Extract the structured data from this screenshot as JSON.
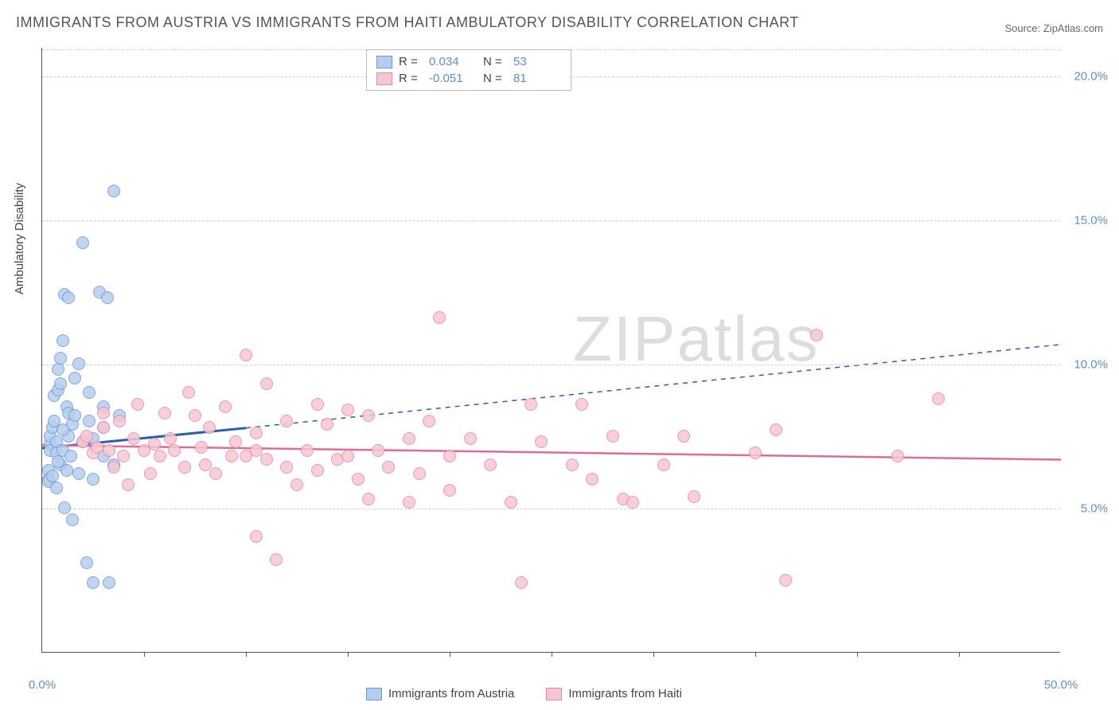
{
  "title": "IMMIGRANTS FROM AUSTRIA VS IMMIGRANTS FROM HAITI AMBULATORY DISABILITY CORRELATION CHART",
  "source_label": "Source: ZipAtlas.com",
  "y_axis_label": "Ambulatory Disability",
  "watermark": {
    "part1": "ZIP",
    "part2": "atlas"
  },
  "chart": {
    "type": "scatter",
    "background_color": "#ffffff",
    "grid_color": "#d0d0d0",
    "axis_color": "#555555",
    "label_color": "#5b8fd6",
    "xlim": [
      0,
      50
    ],
    "ylim": [
      0,
      21
    ],
    "x_ticks": [
      0,
      50
    ],
    "x_tick_labels": [
      "0.0%",
      "50.0%"
    ],
    "x_minor_ticks": [
      5,
      10,
      15,
      20,
      25,
      30,
      35,
      40,
      45
    ],
    "y_ticks": [
      5,
      10,
      15,
      20
    ],
    "y_tick_labels": [
      "5.0%",
      "10.0%",
      "15.0%",
      "20.0%"
    ],
    "marker_radius": 8,
    "marker_border_width": 1.5,
    "marker_fill_opacity": 0.25,
    "series": [
      {
        "name": "Immigrants from Austria",
        "color_fill": "#b7cdee",
        "color_border": "#6a9ad6",
        "trend_color": "#2b5fb0",
        "R": "0.034",
        "N": "53",
        "trend": {
          "x1": 0,
          "y1": 7.1,
          "x2_solid": 10,
          "y2_solid": 7.8,
          "x2": 50,
          "y2": 10.7
        },
        "points": [
          [
            0.3,
            6.3
          ],
          [
            0.3,
            6.0
          ],
          [
            0.3,
            5.9
          ],
          [
            0.4,
            7.2
          ],
          [
            0.4,
            7.0
          ],
          [
            0.4,
            7.5
          ],
          [
            0.5,
            6.1
          ],
          [
            0.5,
            7.8
          ],
          [
            0.6,
            8.0
          ],
          [
            0.6,
            8.9
          ],
          [
            0.7,
            6.9
          ],
          [
            0.7,
            7.3
          ],
          [
            0.8,
            9.1
          ],
          [
            0.8,
            9.8
          ],
          [
            0.9,
            6.5
          ],
          [
            0.9,
            10.2
          ],
          [
            1.0,
            7.0
          ],
          [
            1.0,
            10.8
          ],
          [
            1.1,
            12.4
          ],
          [
            1.1,
            5.0
          ],
          [
            1.2,
            8.5
          ],
          [
            1.3,
            7.5
          ],
          [
            1.3,
            12.3
          ],
          [
            1.4,
            6.8
          ],
          [
            1.5,
            7.9
          ],
          [
            1.5,
            4.6
          ],
          [
            1.6,
            9.5
          ],
          [
            1.8,
            6.2
          ],
          [
            1.8,
            10.0
          ],
          [
            2.0,
            7.3
          ],
          [
            2.0,
            14.2
          ],
          [
            2.2,
            3.1
          ],
          [
            2.3,
            9.0
          ],
          [
            2.5,
            7.4
          ],
          [
            2.5,
            6.0
          ],
          [
            2.5,
            2.4
          ],
          [
            2.8,
            12.5
          ],
          [
            3.0,
            7.8
          ],
          [
            3.2,
            12.3
          ],
          [
            3.3,
            2.4
          ],
          [
            3.5,
            6.5
          ],
          [
            3.5,
            16.0
          ],
          [
            0.8,
            6.6
          ],
          [
            1.2,
            6.3
          ],
          [
            1.0,
            7.7
          ],
          [
            1.3,
            8.3
          ],
          [
            0.7,
            5.7
          ],
          [
            0.9,
            9.3
          ],
          [
            1.6,
            8.2
          ],
          [
            2.3,
            8.0
          ],
          [
            3.0,
            8.5
          ],
          [
            3.0,
            6.8
          ],
          [
            3.8,
            8.2
          ]
        ]
      },
      {
        "name": "Immigrants from Haiti",
        "color_fill": "#f5c7d3",
        "color_border": "#e58aa5",
        "trend_color": "#e06a98",
        "R": "-0.051",
        "N": "81",
        "trend": {
          "x1": 0,
          "y1": 7.2,
          "x2_solid": 50,
          "y2_solid": 6.7,
          "x2": 50,
          "y2": 6.7
        },
        "points": [
          [
            2.0,
            7.3
          ],
          [
            2.2,
            7.5
          ],
          [
            2.5,
            6.9
          ],
          [
            2.7,
            7.1
          ],
          [
            3.0,
            7.8
          ],
          [
            3.0,
            8.3
          ],
          [
            3.3,
            7.0
          ],
          [
            3.5,
            6.4
          ],
          [
            3.8,
            8.0
          ],
          [
            4.0,
            6.8
          ],
          [
            4.2,
            5.8
          ],
          [
            4.5,
            7.4
          ],
          [
            4.7,
            8.6
          ],
          [
            5.0,
            7.0
          ],
          [
            5.3,
            6.2
          ],
          [
            5.5,
            7.2
          ],
          [
            5.8,
            6.8
          ],
          [
            6.0,
            8.3
          ],
          [
            6.3,
            7.4
          ],
          [
            6.5,
            7.0
          ],
          [
            7.0,
            6.4
          ],
          [
            7.2,
            9.0
          ],
          [
            7.5,
            8.2
          ],
          [
            7.8,
            7.1
          ],
          [
            8.0,
            6.5
          ],
          [
            8.2,
            7.8
          ],
          [
            8.5,
            6.2
          ],
          [
            9.0,
            8.5
          ],
          [
            9.3,
            6.8
          ],
          [
            9.5,
            7.3
          ],
          [
            10.0,
            10.3
          ],
          [
            10.0,
            6.8
          ],
          [
            10.5,
            4.0
          ],
          [
            10.5,
            7.0
          ],
          [
            11.0,
            9.3
          ],
          [
            11.0,
            6.7
          ],
          [
            11.5,
            3.2
          ],
          [
            12.0,
            6.4
          ],
          [
            12.0,
            8.0
          ],
          [
            12.5,
            5.8
          ],
          [
            13.0,
            7.0
          ],
          [
            13.5,
            8.6
          ],
          [
            13.5,
            6.3
          ],
          [
            14.0,
            7.9
          ],
          [
            14.5,
            6.7
          ],
          [
            15.0,
            6.8
          ],
          [
            15.0,
            8.4
          ],
          [
            15.5,
            6.0
          ],
          [
            16.0,
            8.2
          ],
          [
            16.0,
            5.3
          ],
          [
            16.5,
            7.0
          ],
          [
            17.0,
            6.4
          ],
          [
            18.0,
            7.4
          ],
          [
            18.0,
            5.2
          ],
          [
            18.5,
            6.2
          ],
          [
            19.0,
            8.0
          ],
          [
            19.5,
            11.6
          ],
          [
            20.0,
            6.8
          ],
          [
            20.0,
            5.6
          ],
          [
            21.0,
            7.4
          ],
          [
            22.0,
            6.5
          ],
          [
            23.0,
            5.2
          ],
          [
            23.5,
            2.4
          ],
          [
            24.0,
            8.6
          ],
          [
            24.5,
            7.3
          ],
          [
            26.0,
            6.5
          ],
          [
            26.5,
            8.6
          ],
          [
            27.0,
            6.0
          ],
          [
            28.0,
            7.5
          ],
          [
            28.5,
            5.3
          ],
          [
            29.0,
            5.2
          ],
          [
            30.5,
            6.5
          ],
          [
            31.5,
            7.5
          ],
          [
            32.0,
            5.4
          ],
          [
            35.0,
            6.9
          ],
          [
            36.0,
            7.7
          ],
          [
            36.5,
            2.5
          ],
          [
            38.0,
            11.0
          ],
          [
            42.0,
            6.8
          ],
          [
            44.0,
            8.8
          ],
          [
            10.5,
            7.6
          ]
        ]
      }
    ]
  },
  "top_legend": {
    "r_label": "R  =",
    "n_label": "N  ="
  },
  "bottom_legend": {
    "items": [
      "Immigrants from Austria",
      "Immigrants from Haiti"
    ]
  }
}
